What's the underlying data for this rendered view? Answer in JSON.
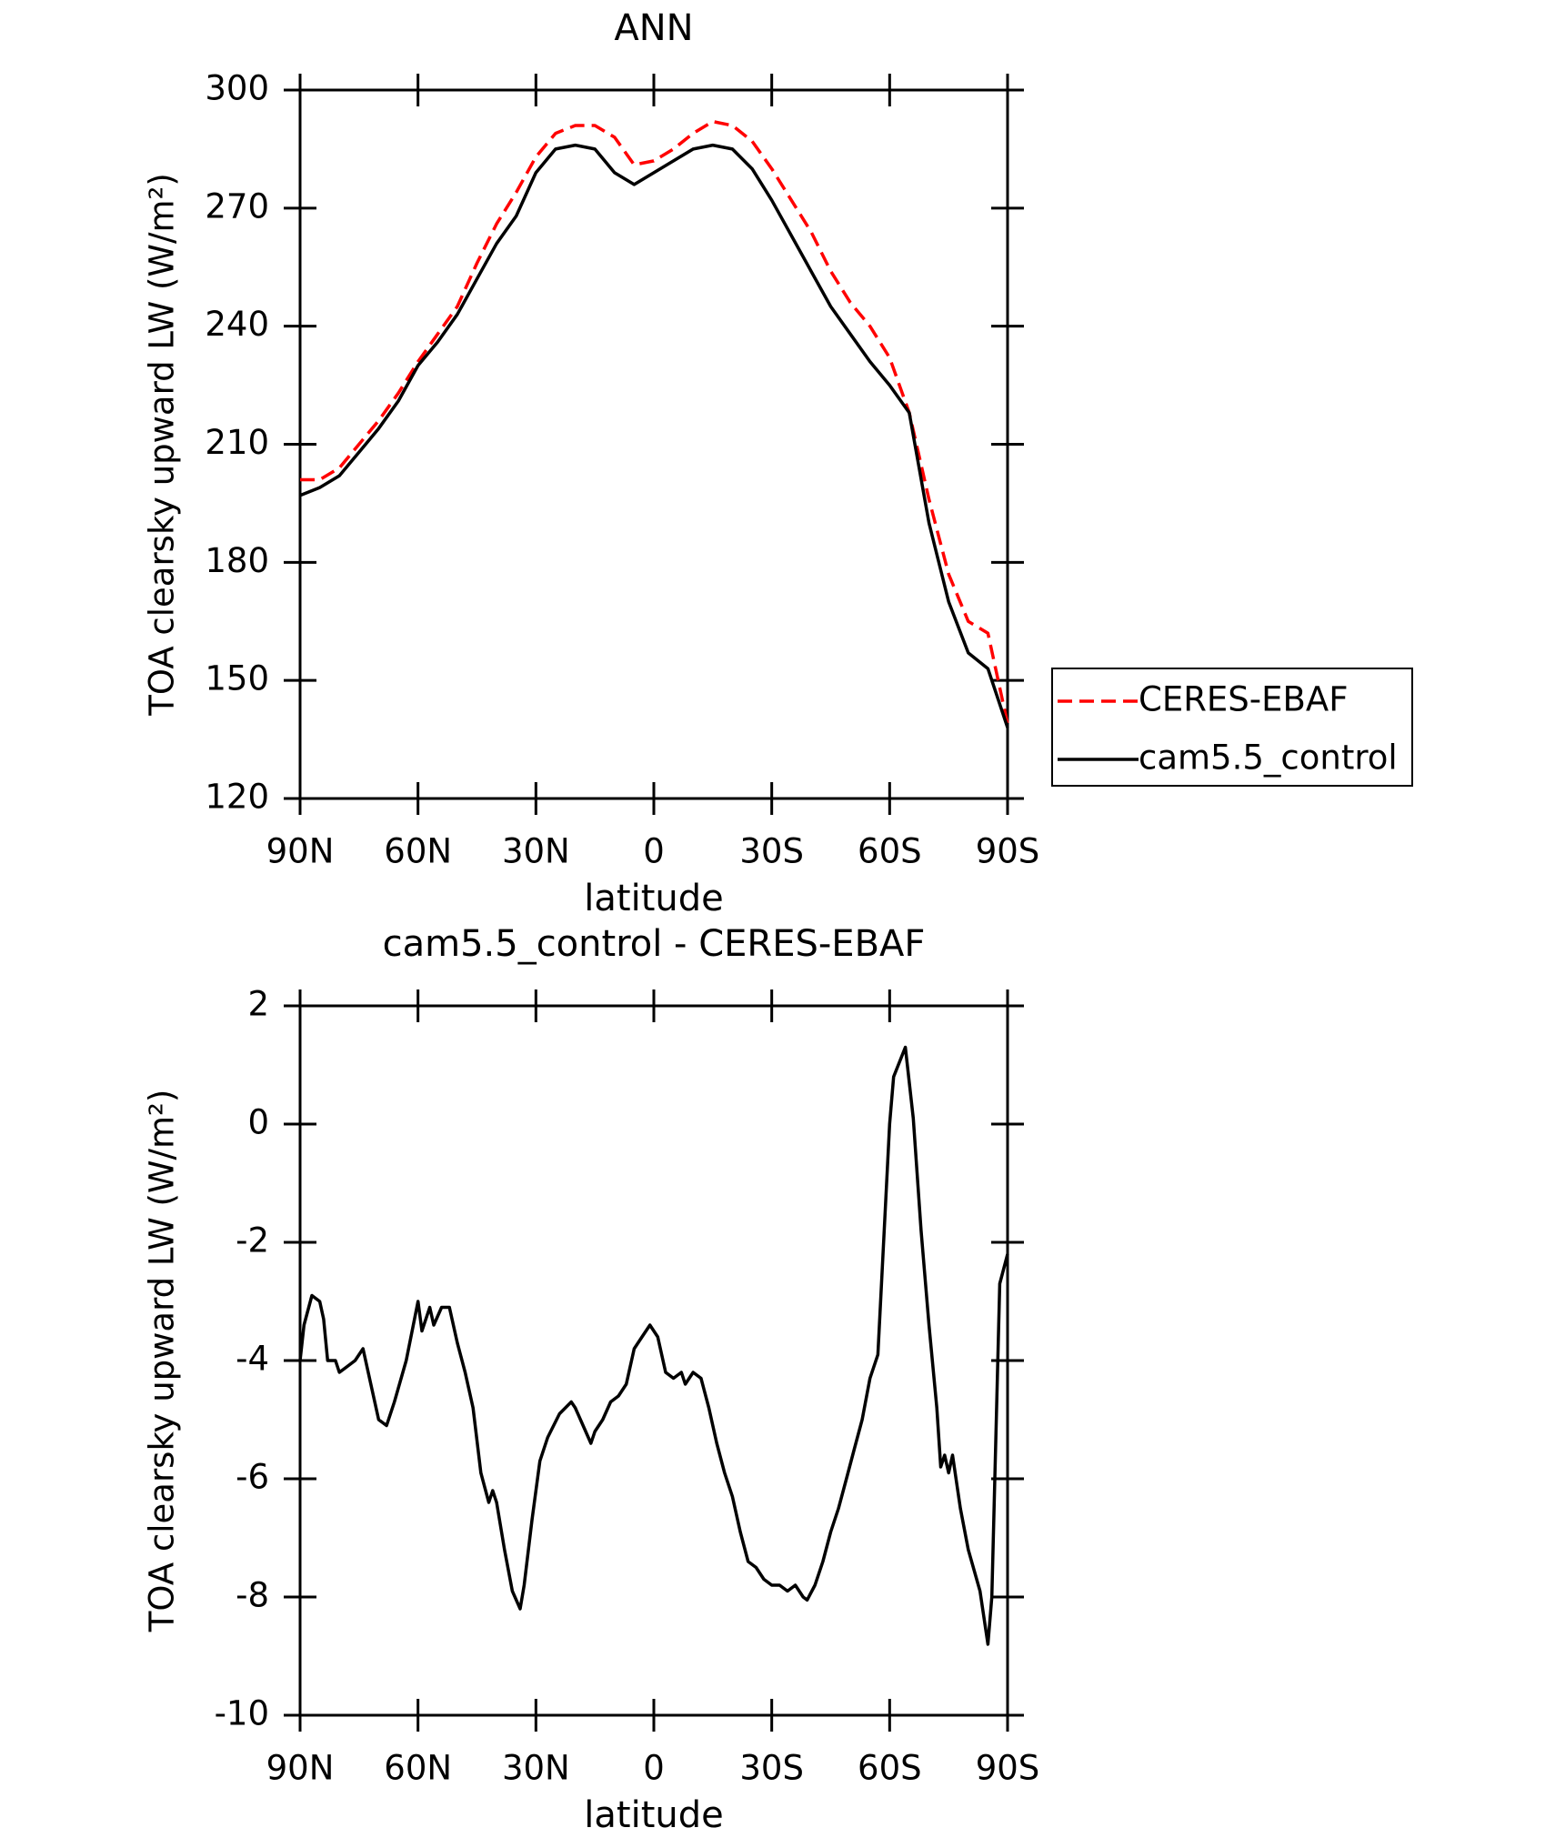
{
  "chart_data": [
    {
      "type": "line",
      "title": "ANN",
      "xlabel": "latitude",
      "ylabel": "TOA clearsky upward LW (W/m²)",
      "x": [
        90,
        85,
        80,
        75,
        70,
        65,
        60,
        55,
        50,
        45,
        40,
        35,
        30,
        25,
        20,
        15,
        10,
        5,
        0,
        -5,
        -10,
        -15,
        -20,
        -25,
        -30,
        -35,
        -40,
        -45,
        -50,
        -55,
        -60,
        -65,
        -70,
        -75,
        -80,
        -85,
        -90
      ],
      "series": [
        {
          "name": "CERES-EBAF",
          "color": "#ff0000",
          "line_style": "dashed",
          "values": [
            201,
            201,
            204,
            210,
            216,
            223,
            231,
            238,
            245,
            256,
            266,
            274,
            283,
            289,
            291,
            291,
            288,
            281,
            282,
            285,
            289,
            292,
            291,
            287,
            280,
            272,
            264,
            254,
            246,
            240,
            232,
            218,
            196,
            177,
            165,
            162,
            139
          ]
        },
        {
          "name": "cam5.5_control",
          "color": "#000000",
          "line_style": "solid",
          "values": [
            197,
            199,
            202,
            208,
            214,
            221,
            230,
            236,
            243,
            252,
            261,
            268,
            279,
            285,
            286,
            285,
            279,
            276,
            279,
            282,
            285,
            286,
            285,
            280,
            272,
            263,
            254,
            245,
            238,
            231,
            225,
            218,
            190,
            170,
            157,
            153,
            138
          ]
        }
      ],
      "xlim": [
        90,
        -90
      ],
      "xticks": [
        {
          "value": 90,
          "label": "90N"
        },
        {
          "value": 60,
          "label": "60N"
        },
        {
          "value": 30,
          "label": "30N"
        },
        0,
        {
          "value": -30,
          "label": "30S"
        },
        {
          "value": -60,
          "label": "60S"
        },
        {
          "value": -90,
          "label": "90S"
        }
      ],
      "ylim": [
        120,
        300
      ],
      "yticks": [
        120,
        150,
        180,
        210,
        240,
        270,
        300
      ],
      "legend": "right"
    },
    {
      "type": "line",
      "title": "cam5.5_control - CERES-EBAF",
      "xlabel": "latitude",
      "ylabel": "TOA clearsky upward LW (W/m²)",
      "x": [
        90,
        89,
        87,
        85,
        84,
        83,
        81,
        80,
        78,
        76,
        74,
        72,
        70,
        68,
        66,
        63,
        60,
        59,
        57,
        56,
        54,
        52,
        50,
        48,
        46,
        44,
        42,
        41,
        40,
        38,
        36,
        34,
        33,
        31,
        29,
        27,
        24,
        21,
        20,
        18,
        16,
        15,
        13,
        11,
        9,
        7,
        5,
        3,
        1,
        -1,
        -3,
        -5,
        -7,
        -8,
        -10,
        -12,
        -14,
        -16,
        -18,
        -20,
        -22,
        -24,
        -26,
        -28,
        -30,
        -32,
        -34,
        -36,
        -38,
        -39,
        -41,
        -43,
        -45,
        -47,
        -49,
        -51,
        -53,
        -55,
        -57,
        -60,
        -61,
        -64,
        -66,
        -68,
        -70,
        -72,
        -73,
        -74,
        -75,
        -76,
        -78,
        -80,
        -83,
        -85,
        -86,
        -88,
        -90
      ],
      "color": "#000000",
      "values": [
        -4.0,
        -3.4,
        -2.9,
        -3.0,
        -3.3,
        -4.0,
        -4.0,
        -4.2,
        -4.1,
        -4.0,
        -3.8,
        -4.4,
        -5.0,
        -5.1,
        -4.7,
        -4.0,
        -3.0,
        -3.5,
        -3.1,
        -3.4,
        -3.1,
        -3.1,
        -3.7,
        -4.2,
        -4.8,
        -5.9,
        -6.4,
        -6.2,
        -6.4,
        -7.2,
        -7.9,
        -8.2,
        -7.8,
        -6.7,
        -5.7,
        -5.3,
        -4.9,
        -4.7,
        -4.8,
        -5.1,
        -5.4,
        -5.2,
        -5.0,
        -4.7,
        -4.6,
        -4.4,
        -3.8,
        -3.6,
        -3.4,
        -3.6,
        -4.2,
        -4.3,
        -4.2,
        -4.4,
        -4.2,
        -4.3,
        -4.8,
        -5.4,
        -5.9,
        -6.3,
        -6.9,
        -7.4,
        -7.5,
        -7.7,
        -7.8,
        -7.8,
        -7.9,
        -7.8,
        -8.0,
        -8.05,
        -7.8,
        -7.4,
        -6.9,
        -6.5,
        -6.0,
        -5.5,
        -5.0,
        -4.3,
        -3.9,
        0.0,
        0.8,
        1.3,
        0.1,
        -1.8,
        -3.4,
        -4.8,
        -5.8,
        -5.6,
        -5.9,
        -5.6,
        -6.5,
        -7.2,
        -7.9,
        -8.8,
        -8.0,
        -2.7,
        -2.2
      ],
      "xlim": [
        90,
        -90
      ],
      "xticks": [
        {
          "value": 90,
          "label": "90N"
        },
        {
          "value": 60,
          "label": "60N"
        },
        {
          "value": 30,
          "label": "30N"
        },
        0,
        {
          "value": -30,
          "label": "30S"
        },
        {
          "value": -60,
          "label": "60S"
        },
        {
          "value": -90,
          "label": "90S"
        }
      ],
      "ylim": [
        -10,
        2
      ],
      "yticks": [
        -10,
        -8,
        -6,
        -4,
        -2,
        0,
        2
      ]
    }
  ]
}
